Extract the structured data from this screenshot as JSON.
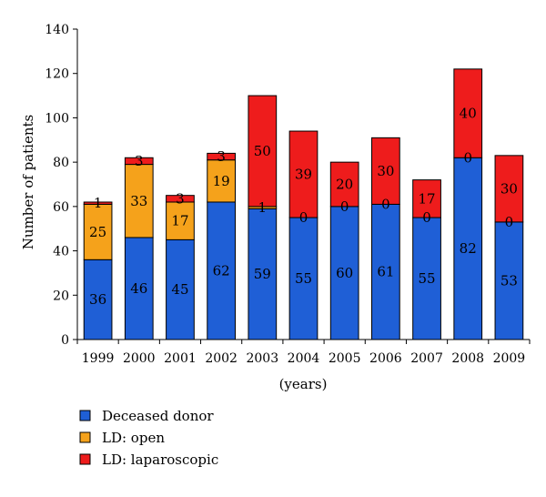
{
  "chart_data": {
    "type": "bar",
    "stacked": true,
    "categories": [
      "1999",
      "2000",
      "2001",
      "2002",
      "2003",
      "2004",
      "2005",
      "2006",
      "2007",
      "2008",
      "2009"
    ],
    "series": [
      {
        "name": "Deceased donor",
        "color": "#1f5fd6",
        "values": [
          36,
          46,
          45,
          62,
          59,
          55,
          60,
          61,
          55,
          82,
          53
        ]
      },
      {
        "name": "LD: open",
        "color": "#f5a21b",
        "values": [
          25,
          33,
          17,
          19,
          1,
          0,
          0,
          0,
          0,
          0,
          0
        ]
      },
      {
        "name": "LD: laparoscopic",
        "color": "#ee1c1c",
        "values": [
          1,
          3,
          3,
          3,
          50,
          39,
          20,
          30,
          17,
          40,
          30
        ]
      }
    ],
    "data_labels": [
      [
        "36",
        "46",
        "45",
        "62",
        "59",
        "55",
        "60",
        "61",
        "55",
        "82",
        "53"
      ],
      [
        "25",
        "33",
        "17",
        "19",
        "1",
        "0",
        "0",
        "0",
        "0",
        "0",
        "0"
      ],
      [
        "1",
        "3",
        "3",
        "3",
        "50",
        "39",
        "20",
        "30",
        "17",
        "40",
        "30"
      ]
    ],
    "xlabel": "(years)",
    "ylabel": "Number of  patients",
    "ylim": [
      0,
      140
    ],
    "yticks": [
      0,
      20,
      40,
      60,
      80,
      100,
      120,
      140
    ],
    "grid": false,
    "legend_position": "bottom-left"
  }
}
